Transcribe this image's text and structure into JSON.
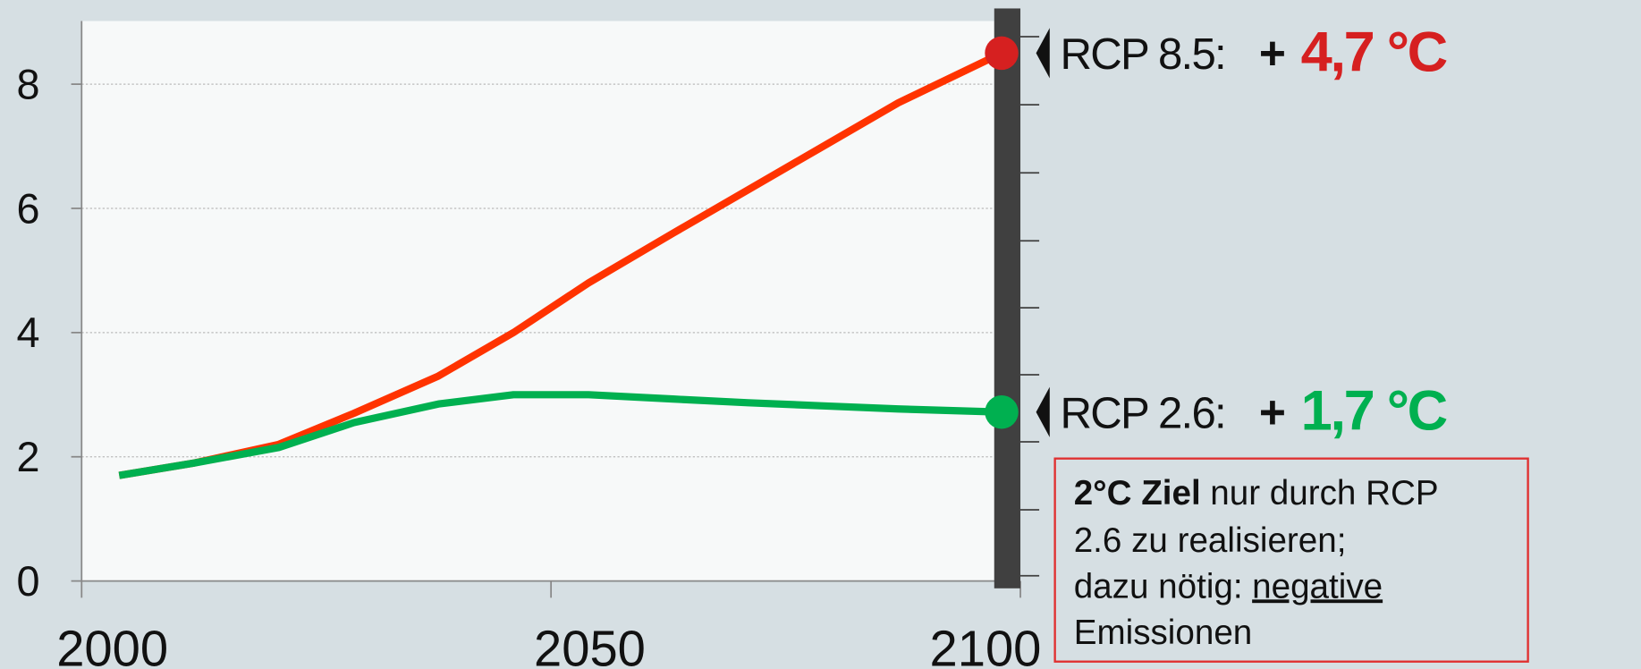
{
  "chart_data": {
    "type": "line",
    "x": [
      2004,
      2012,
      2021,
      2029,
      2038,
      2046,
      2054,
      2063,
      2071,
      2079,
      2087,
      2098
    ],
    "series": [
      {
        "name": "RCP 8.5:",
        "color": "#ff3300",
        "marker_color": "#d62020",
        "sign": "+",
        "change": "4,7 °C",
        "values": [
          1.7,
          1.9,
          2.2,
          2.7,
          3.3,
          4.0,
          4.8,
          5.6,
          6.3,
          7.0,
          7.7,
          8.5
        ]
      },
      {
        "name": "RCP 2.6:",
        "color": "#00b050",
        "marker_color": "#00b050",
        "sign": "+",
        "change": "1,7 °C",
        "values": [
          1.7,
          1.9,
          2.15,
          2.55,
          2.85,
          3.0,
          3.0,
          2.93,
          2.87,
          2.82,
          2.77,
          2.72
        ]
      }
    ],
    "xlim": [
      2000,
      2100
    ],
    "xticks": [
      2000,
      2050,
      2100
    ],
    "ylim": [
      0,
      9
    ],
    "yticks": [
      0,
      2,
      4,
      6,
      8
    ],
    "grid": true,
    "note": {
      "lines": [
        [
          "2°C Ziel",
          "nur durch RCP"
        ],
        [
          "2.6 zu realisieren;"
        ],
        [
          "dazu nötig:",
          "negative"
        ],
        [
          "Emissionen"
        ]
      ]
    }
  }
}
